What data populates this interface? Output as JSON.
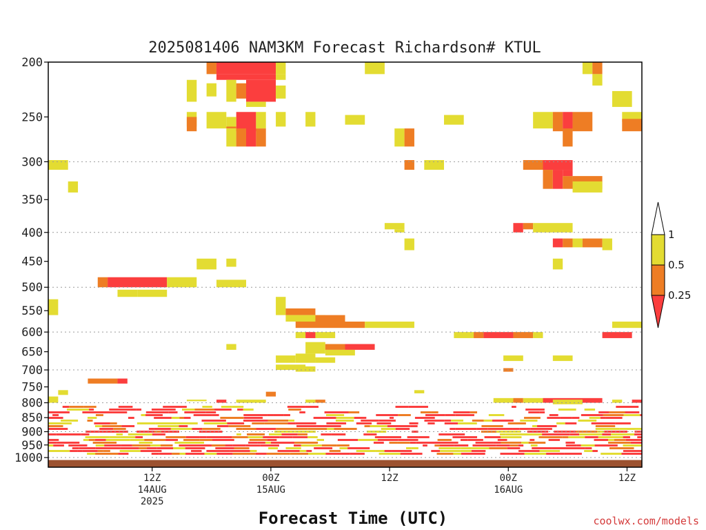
{
  "chart_data": {
    "type": "heatmap",
    "title": "2025081406 NAM3KM Forecast Richardson# KTUL",
    "xlabel": "Forecast Time (UTC)",
    "ylabel": "",
    "y_scale": "log-pressure (inverted)",
    "ylim": [
      1040,
      200
    ],
    "y_ticks": [
      200,
      250,
      300,
      350,
      400,
      450,
      500,
      550,
      600,
      650,
      700,
      750,
      800,
      850,
      900,
      950,
      1000
    ],
    "y_gridlines": [
      300,
      400,
      500,
      600,
      700,
      800,
      900,
      1000
    ],
    "xlim": [
      -4,
      56
    ],
    "x_units": "forecast hours from 2025081406",
    "x_ticks": [
      {
        "x": 6,
        "lines": [
          "12Z",
          "14AUG",
          "2025"
        ]
      },
      {
        "x": 18,
        "lines": [
          "00Z",
          "15AUG"
        ]
      },
      {
        "x": 30,
        "lines": [
          "12Z"
        ]
      },
      {
        "x": 42,
        "lines": [
          "00Z",
          "16AUG"
        ]
      },
      {
        "x": 54,
        "lines": [
          "12Z"
        ]
      }
    ],
    "legend": {
      "placement": "right",
      "ticks": [
        "1",
        "0.5",
        "0.25"
      ],
      "bins": [
        {
          "range": "> 1",
          "color": "#ffffff"
        },
        {
          "range": "0.5 - 1",
          "color": "#e3dc32"
        },
        {
          "range": "0.25 - 0.5",
          "color": "#ee7d24"
        },
        {
          "range": "< 0.25",
          "color": "#fb3e3e"
        }
      ]
    },
    "ground_fill": {
      "from_p": 1010,
      "color": "#9c5230"
    },
    "grid": true,
    "levels": {
      "Y": "#e3dc32",
      "O": "#ee7d24",
      "R": "#fb3e3e"
    },
    "cells": [
      [
        "O",
        12,
        12,
        200,
        210
      ],
      [
        "R",
        13,
        18,
        200,
        210
      ],
      [
        "Y",
        19,
        19,
        200,
        210
      ],
      [
        "Y",
        28,
        29,
        200,
        210
      ],
      [
        "Y",
        50,
        50,
        200,
        210
      ],
      [
        "O",
        51,
        51,
        200,
        210
      ],
      [
        "R",
        13,
        18,
        210,
        215
      ],
      [
        "Y",
        19,
        19,
        210,
        215
      ],
      [
        "Y",
        51,
        51,
        210,
        220
      ],
      [
        "Y",
        10,
        10,
        215,
        235
      ],
      [
        "Y",
        12,
        12,
        218,
        230
      ],
      [
        "Y",
        14,
        14,
        215,
        235
      ],
      [
        "O",
        15,
        15,
        218,
        232
      ],
      [
        "R",
        16,
        18,
        215,
        235
      ],
      [
        "Y",
        19,
        19,
        220,
        232
      ],
      [
        "Y",
        53,
        54,
        225,
        240
      ],
      [
        "Y",
        16,
        17,
        235,
        240
      ],
      [
        "Y",
        10,
        10,
        245,
        260
      ],
      [
        "Y",
        12,
        13,
        245,
        262
      ],
      [
        "R",
        15,
        16,
        245,
        265
      ],
      [
        "Y",
        17,
        17,
        245,
        262
      ],
      [
        "Y",
        19,
        19,
        245,
        260
      ],
      [
        "Y",
        22,
        22,
        245,
        260
      ],
      [
        "Y",
        26,
        27,
        248,
        258
      ],
      [
        "Y",
        36,
        37,
        248,
        258
      ],
      [
        "Y",
        45,
        46,
        245,
        262
      ],
      [
        "O",
        47,
        47,
        245,
        265
      ],
      [
        "R",
        48,
        48,
        245,
        265
      ],
      [
        "O",
        49,
        50,
        245,
        265
      ],
      [
        "Y",
        54,
        55,
        245,
        255
      ],
      [
        "O",
        54,
        55,
        252,
        265
      ],
      [
        "Y",
        56,
        56,
        255,
        275
      ],
      [
        "O",
        10,
        10,
        250,
        265
      ],
      [
        "Y",
        14,
        14,
        250,
        262
      ],
      [
        "O",
        14,
        14,
        260,
        262
      ],
      [
        "Y",
        14,
        14,
        262,
        282
      ],
      [
        "O",
        15,
        15,
        262,
        282
      ],
      [
        "R",
        16,
        16,
        262,
        282
      ],
      [
        "O",
        17,
        17,
        262,
        282
      ],
      [
        "Y",
        31,
        31,
        262,
        282
      ],
      [
        "O",
        32,
        32,
        262,
        282
      ],
      [
        "O",
        48,
        48,
        262,
        282
      ],
      [
        "Y",
        56,
        57,
        262,
        282
      ],
      [
        "Y",
        -4,
        -3,
        298,
        310
      ],
      [
        "O",
        32,
        32,
        298,
        310
      ],
      [
        "Y",
        34,
        35,
        298,
        310
      ],
      [
        "O",
        44,
        45,
        298,
        310
      ],
      [
        "R",
        46,
        48,
        298,
        310
      ],
      [
        "O",
        46,
        46,
        310,
        335
      ],
      [
        "R",
        47,
        47,
        310,
        335
      ],
      [
        "O",
        48,
        48,
        318,
        335
      ],
      [
        "O",
        49,
        51,
        318,
        335
      ],
      [
        "Y",
        49,
        51,
        325,
        340
      ],
      [
        "R",
        48,
        48,
        310,
        318
      ],
      [
        "Y",
        -2,
        -2,
        325,
        340
      ],
      [
        "Y",
        30,
        31,
        385,
        395
      ],
      [
        "R",
        43,
        43,
        385,
        400
      ],
      [
        "O",
        44,
        44,
        385,
        395
      ],
      [
        "Y",
        45,
        48,
        385,
        400
      ],
      [
        "Y",
        31,
        31,
        395,
        400
      ],
      [
        "R",
        47,
        47,
        410,
        425
      ],
      [
        "O",
        48,
        48,
        410,
        425
      ],
      [
        "Y",
        49,
        49,
        410,
        425
      ],
      [
        "O",
        50,
        51,
        410,
        425
      ],
      [
        "Y",
        52,
        52,
        410,
        430
      ],
      [
        "Y",
        32,
        32,
        410,
        430
      ],
      [
        "Y",
        11,
        12,
        445,
        465
      ],
      [
        "Y",
        14,
        14,
        445,
        460
      ],
      [
        "Y",
        47,
        47,
        445,
        465
      ],
      [
        "O",
        1,
        1,
        480,
        500
      ],
      [
        "R",
        2,
        7,
        480,
        500
      ],
      [
        "Y",
        8,
        10,
        480,
        500
      ],
      [
        "Y",
        13,
        15,
        485,
        500
      ],
      [
        "Y",
        3,
        4,
        505,
        520
      ],
      [
        "Y",
        5,
        7,
        505,
        520
      ],
      [
        "Y",
        -4,
        -4,
        525,
        560
      ],
      [
        "Y",
        19,
        19,
        520,
        560
      ],
      [
        "O",
        20,
        22,
        545,
        560
      ],
      [
        "Y",
        20,
        23,
        560,
        575
      ],
      [
        "O",
        23,
        25,
        560,
        575
      ],
      [
        "O",
        21,
        27,
        575,
        590
      ],
      [
        "Y",
        28,
        32,
        575,
        590
      ],
      [
        "Y",
        53,
        56,
        575,
        590
      ],
      [
        "Y",
        21,
        21,
        600,
        615
      ],
      [
        "R",
        22,
        22,
        600,
        615
      ],
      [
        "Y",
        23,
        24,
        600,
        615
      ],
      [
        "Y",
        37,
        38,
        600,
        615
      ],
      [
        "O",
        39,
        39,
        600,
        615
      ],
      [
        "R",
        40,
        42,
        600,
        615
      ],
      [
        "O",
        43,
        44,
        600,
        615
      ],
      [
        "Y",
        45,
        45,
        600,
        615
      ],
      [
        "R",
        52,
        54,
        600,
        615
      ],
      [
        "Y",
        56,
        56,
        600,
        615
      ],
      [
        "O",
        57,
        57,
        600,
        615
      ],
      [
        "Y",
        14,
        14,
        630,
        645
      ],
      [
        "Y",
        22,
        23,
        625,
        655
      ],
      [
        "O",
        24,
        25,
        630,
        645
      ],
      [
        "R",
        26,
        28,
        630,
        645
      ],
      [
        "Y",
        24,
        26,
        645,
        660
      ],
      [
        "Y",
        19,
        20,
        660,
        680
      ],
      [
        "Y",
        21,
        22,
        655,
        680
      ],
      [
        "Y",
        23,
        24,
        665,
        680
      ],
      [
        "Y",
        42,
        43,
        660,
        675
      ],
      [
        "Y",
        47,
        48,
        660,
        675
      ],
      [
        "O",
        42,
        42,
        695,
        705
      ],
      [
        "Y",
        19,
        21,
        685,
        700
      ],
      [
        "Y",
        21,
        22,
        690,
        705
      ],
      [
        "O",
        0,
        2,
        725,
        740
      ],
      [
        "R",
        3,
        3,
        725,
        740
      ],
      [
        "Y",
        -3,
        -3,
        760,
        775
      ],
      [
        "Y",
        -4,
        -4,
        780,
        800
      ],
      [
        "Y",
        33,
        33,
        760,
        770
      ],
      [
        "O",
        18,
        18,
        765,
        780
      ],
      [
        "Y",
        10,
        11,
        790,
        795
      ],
      [
        "Y",
        15,
        17,
        790,
        800
      ],
      [
        "R",
        13,
        13,
        790,
        800
      ],
      [
        "O",
        23,
        23,
        790,
        800
      ],
      [
        "Y",
        22,
        22,
        790,
        800
      ],
      [
        "Y",
        41,
        42,
        785,
        800
      ],
      [
        "O",
        43,
        43,
        785,
        800
      ],
      [
        "Y",
        44,
        45,
        785,
        800
      ],
      [
        "R",
        46,
        51,
        785,
        800
      ],
      [
        "Y",
        47,
        49,
        790,
        805
      ],
      [
        "Y",
        53,
        53,
        790,
        800
      ],
      [
        "R",
        55,
        55,
        790,
        800
      ],
      [
        "O",
        56,
        56,
        790,
        800
      ]
    ],
    "boundary_layer_band": {
      "from_p": 810,
      "to_p": 985,
      "colors": [
        "Y",
        "O",
        "R"
      ],
      "note": "dense alternating low-level stripes across the full time range"
    }
  },
  "watermark": "coolwx.com/models"
}
